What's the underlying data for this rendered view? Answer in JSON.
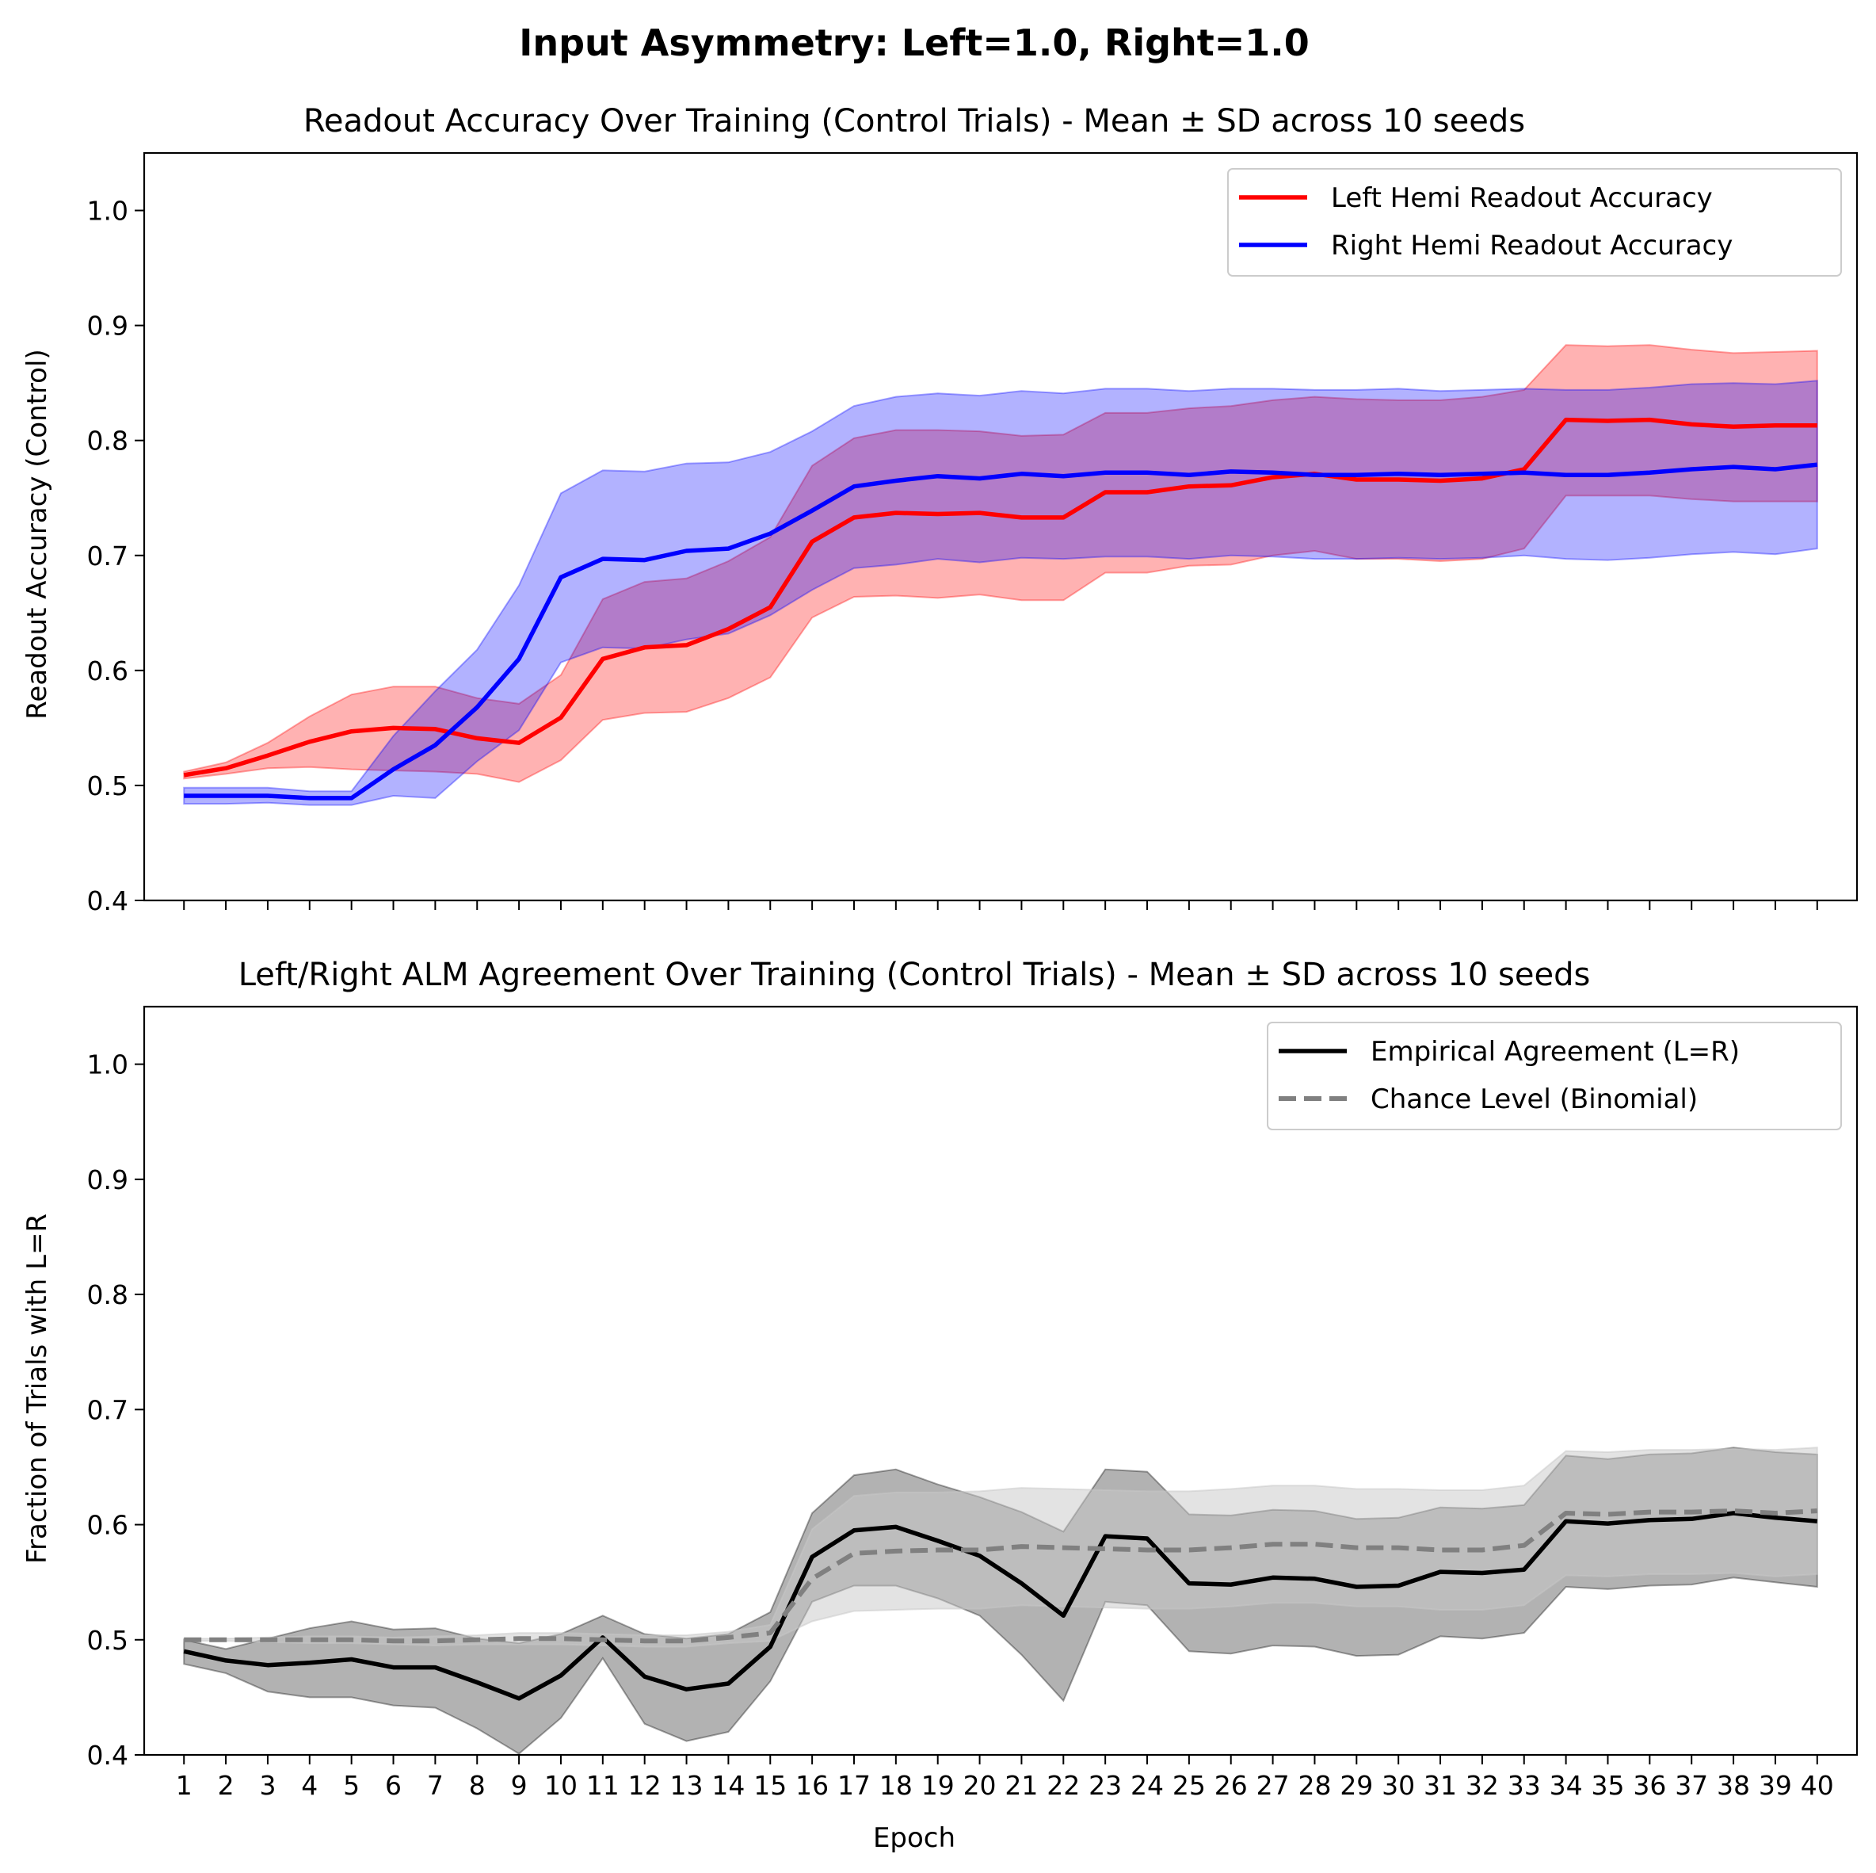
{
  "figure": {
    "suptitle": "Input Asymmetry: Left=1.0, Right=1.0"
  },
  "chart_data": [
    {
      "type": "line",
      "title": "Readout Accuracy Over Training (Control Trials) - Mean ± SD across 10 seeds",
      "xlabel": "",
      "ylabel": "Readout Accuracy (Control)",
      "ylim": [
        0.4,
        1.05
      ],
      "yticks": [
        "0.4",
        "0.5",
        "0.6",
        "0.7",
        "0.8",
        "0.9",
        "1.0"
      ],
      "xticklabels_visible": false,
      "grid": false,
      "legend": "upper right",
      "x": [
        1,
        2,
        3,
        4,
        5,
        6,
        7,
        8,
        9,
        10,
        11,
        12,
        13,
        14,
        15,
        16,
        17,
        18,
        19,
        20,
        21,
        22,
        23,
        24,
        25,
        26,
        27,
        28,
        29,
        30,
        31,
        32,
        33,
        34,
        35,
        36,
        37,
        38,
        39,
        40
      ],
      "series": [
        {
          "name": "Left Hemi Readout Accuracy",
          "color": "#ff0000",
          "band_color": "#ff0000",
          "dash": "solid",
          "mean": [
            0.509,
            0.515,
            0.526,
            0.538,
            0.547,
            0.55,
            0.549,
            0.541,
            0.537,
            0.559,
            0.61,
            0.62,
            0.622,
            0.636,
            0.655,
            0.712,
            0.733,
            0.737,
            0.736,
            0.737,
            0.733,
            0.733,
            0.755,
            0.755,
            0.76,
            0.761,
            0.768,
            0.771,
            0.766,
            0.766,
            0.765,
            0.767,
            0.775,
            0.818,
            0.817,
            0.818,
            0.814,
            0.812,
            0.813,
            0.813
          ],
          "upper": [
            0.512,
            0.52,
            0.537,
            0.56,
            0.579,
            0.586,
            0.586,
            0.576,
            0.571,
            0.596,
            0.662,
            0.677,
            0.68,
            0.695,
            0.716,
            0.778,
            0.802,
            0.809,
            0.809,
            0.808,
            0.804,
            0.805,
            0.824,
            0.824,
            0.828,
            0.83,
            0.835,
            0.838,
            0.836,
            0.835,
            0.835,
            0.838,
            0.844,
            0.883,
            0.882,
            0.883,
            0.879,
            0.876,
            0.877,
            0.878
          ],
          "lower": [
            0.506,
            0.51,
            0.515,
            0.516,
            0.514,
            0.513,
            0.512,
            0.51,
            0.503,
            0.522,
            0.557,
            0.563,
            0.564,
            0.576,
            0.594,
            0.646,
            0.664,
            0.665,
            0.663,
            0.666,
            0.661,
            0.661,
            0.685,
            0.685,
            0.691,
            0.692,
            0.7,
            0.704,
            0.697,
            0.697,
            0.695,
            0.697,
            0.706,
            0.752,
            0.752,
            0.752,
            0.749,
            0.747,
            0.747,
            0.747
          ]
        },
        {
          "name": "Right Hemi Readout Accuracy",
          "color": "#0000ff",
          "band_color": "#0000ff",
          "dash": "solid",
          "mean": [
            0.491,
            0.491,
            0.491,
            0.489,
            0.489,
            0.514,
            0.535,
            0.568,
            0.61,
            0.681,
            0.697,
            0.696,
            0.704,
            0.706,
            0.719,
            0.739,
            0.76,
            0.765,
            0.769,
            0.767,
            0.771,
            0.769,
            0.772,
            0.772,
            0.77,
            0.773,
            0.772,
            0.77,
            0.77,
            0.771,
            0.77,
            0.771,
            0.772,
            0.77,
            0.77,
            0.772,
            0.775,
            0.777,
            0.775,
            0.779
          ],
          "upper": [
            0.498,
            0.498,
            0.498,
            0.495,
            0.495,
            0.543,
            0.582,
            0.618,
            0.674,
            0.754,
            0.774,
            0.773,
            0.78,
            0.781,
            0.79,
            0.808,
            0.83,
            0.838,
            0.841,
            0.839,
            0.843,
            0.841,
            0.845,
            0.845,
            0.843,
            0.845,
            0.845,
            0.844,
            0.844,
            0.845,
            0.843,
            0.844,
            0.845,
            0.844,
            0.844,
            0.846,
            0.849,
            0.85,
            0.849,
            0.852
          ],
          "lower": [
            0.484,
            0.484,
            0.485,
            0.483,
            0.483,
            0.491,
            0.489,
            0.521,
            0.548,
            0.607,
            0.62,
            0.619,
            0.627,
            0.632,
            0.648,
            0.67,
            0.689,
            0.692,
            0.697,
            0.694,
            0.698,
            0.697,
            0.699,
            0.699,
            0.697,
            0.7,
            0.699,
            0.697,
            0.697,
            0.698,
            0.697,
            0.698,
            0.7,
            0.697,
            0.696,
            0.698,
            0.701,
            0.703,
            0.701,
            0.706
          ]
        }
      ]
    },
    {
      "type": "line",
      "title": "Left/Right ALM Agreement Over Training (Control Trials) - Mean ± SD across 10 seeds",
      "xlabel": "Epoch",
      "ylabel": "Fraction of Trials with L=R",
      "ylim": [
        0.4,
        1.05
      ],
      "yticks": [
        "0.4",
        "0.5",
        "0.6",
        "0.7",
        "0.8",
        "0.9",
        "1.0"
      ],
      "xticklabels": [
        "1",
        "2",
        "3",
        "4",
        "5",
        "6",
        "7",
        "8",
        "9",
        "10",
        "11",
        "12",
        "13",
        "14",
        "15",
        "16",
        "17",
        "18",
        "19",
        "20",
        "21",
        "22",
        "23",
        "24",
        "25",
        "26",
        "27",
        "28",
        "29",
        "30",
        "31",
        "32",
        "33",
        "34",
        "35",
        "36",
        "37",
        "38",
        "39",
        "40"
      ],
      "grid": false,
      "legend": "upper right",
      "x": [
        1,
        2,
        3,
        4,
        5,
        6,
        7,
        8,
        9,
        10,
        11,
        12,
        13,
        14,
        15,
        16,
        17,
        18,
        19,
        20,
        21,
        22,
        23,
        24,
        25,
        26,
        27,
        28,
        29,
        30,
        31,
        32,
        33,
        34,
        35,
        36,
        37,
        38,
        39,
        40
      ],
      "series": [
        {
          "name": "Empirical Agreement (L=R)",
          "color": "#000000",
          "band_color": "#000000",
          "dash": "solid",
          "mean": [
            0.49,
            0.482,
            0.478,
            0.48,
            0.483,
            0.476,
            0.476,
            0.463,
            0.449,
            0.469,
            0.502,
            0.468,
            0.457,
            0.462,
            0.494,
            0.572,
            0.595,
            0.598,
            0.586,
            0.573,
            0.549,
            0.521,
            0.59,
            0.588,
            0.549,
            0.548,
            0.554,
            0.553,
            0.546,
            0.547,
            0.559,
            0.558,
            0.561,
            0.603,
            0.601,
            0.604,
            0.605,
            0.61,
            0.606,
            0.603
          ],
          "upper": [
            0.5,
            0.492,
            0.501,
            0.51,
            0.516,
            0.509,
            0.51,
            0.501,
            0.497,
            0.505,
            0.521,
            0.505,
            0.501,
            0.505,
            0.524,
            0.61,
            0.643,
            0.648,
            0.635,
            0.624,
            0.611,
            0.594,
            0.648,
            0.646,
            0.609,
            0.608,
            0.613,
            0.612,
            0.605,
            0.606,
            0.615,
            0.614,
            0.617,
            0.66,
            0.657,
            0.661,
            0.662,
            0.667,
            0.663,
            0.661
          ],
          "lower": [
            0.479,
            0.471,
            0.455,
            0.45,
            0.45,
            0.443,
            0.441,
            0.423,
            0.401,
            0.432,
            0.484,
            0.427,
            0.412,
            0.42,
            0.464,
            0.533,
            0.547,
            0.547,
            0.536,
            0.521,
            0.487,
            0.447,
            0.533,
            0.53,
            0.49,
            0.488,
            0.495,
            0.494,
            0.486,
            0.487,
            0.503,
            0.501,
            0.506,
            0.546,
            0.544,
            0.547,
            0.548,
            0.554,
            0.55,
            0.546
          ]
        },
        {
          "name": "Chance Level (Binomial)",
          "color": "#808080",
          "band_color": "#c8c8c8",
          "dash": "dashed",
          "mean": [
            0.5,
            0.5,
            0.5,
            0.5,
            0.5,
            0.499,
            0.499,
            0.5,
            0.501,
            0.501,
            0.5,
            0.499,
            0.499,
            0.502,
            0.506,
            0.553,
            0.575,
            0.577,
            0.578,
            0.578,
            0.581,
            0.58,
            0.579,
            0.578,
            0.578,
            0.58,
            0.583,
            0.583,
            0.58,
            0.58,
            0.578,
            0.578,
            0.582,
            0.61,
            0.609,
            0.611,
            0.611,
            0.612,
            0.61,
            0.612
          ],
          "upper": [
            0.501,
            0.501,
            0.502,
            0.503,
            0.503,
            0.502,
            0.503,
            0.504,
            0.506,
            0.506,
            0.505,
            0.504,
            0.504,
            0.507,
            0.513,
            0.596,
            0.625,
            0.628,
            0.628,
            0.629,
            0.632,
            0.631,
            0.63,
            0.629,
            0.629,
            0.631,
            0.634,
            0.634,
            0.631,
            0.631,
            0.63,
            0.63,
            0.634,
            0.664,
            0.663,
            0.665,
            0.665,
            0.666,
            0.665,
            0.667
          ],
          "lower": [
            0.499,
            0.499,
            0.498,
            0.497,
            0.497,
            0.496,
            0.495,
            0.496,
            0.496,
            0.496,
            0.495,
            0.494,
            0.494,
            0.497,
            0.499,
            0.516,
            0.525,
            0.526,
            0.527,
            0.527,
            0.53,
            0.529,
            0.528,
            0.527,
            0.527,
            0.529,
            0.532,
            0.532,
            0.529,
            0.529,
            0.526,
            0.526,
            0.53,
            0.556,
            0.555,
            0.557,
            0.557,
            0.558,
            0.555,
            0.557
          ]
        }
      ]
    }
  ]
}
